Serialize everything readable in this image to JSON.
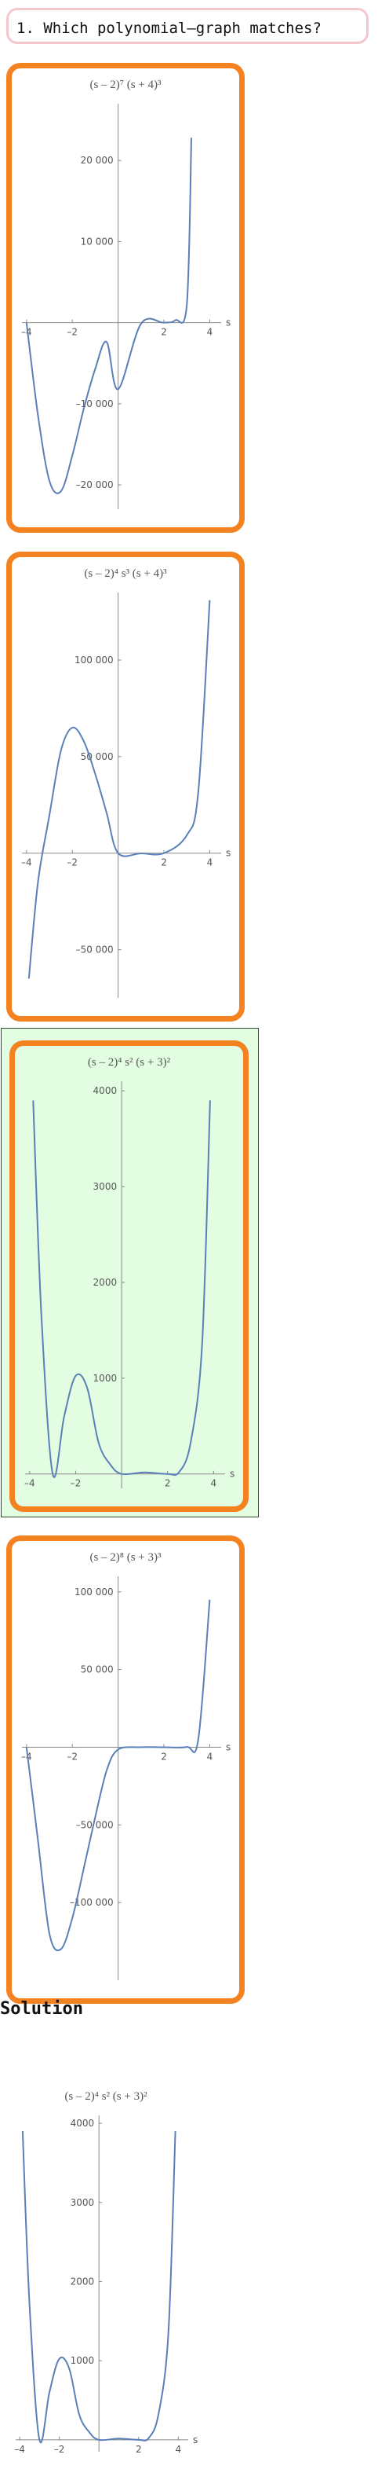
{
  "question": {
    "label": "1. Which polynomial–graph matches?"
  },
  "solution": {
    "heading": "Solution"
  },
  "colors": {
    "option_border": "#f58220",
    "selected_bg": "#e3fde3",
    "curve": "#5b7fb8",
    "question_border": "#f5c6cc"
  },
  "chart_data": [
    {
      "type": "line",
      "title": "(s – 2)⁷ (s + 4)³",
      "xlabel": "s",
      "ylabel": "",
      "xlim": [
        -4.2,
        4.5
      ],
      "ylim": [
        -23000,
        27000
      ],
      "x_ticks": [
        -4,
        -2,
        2,
        4
      ],
      "x_tick_labels": [
        "–4",
        "–2",
        "2",
        "4"
      ],
      "y_ticks": [
        -20000,
        -10000,
        10000,
        20000
      ],
      "y_tick_labels": [
        "–20 000",
        "–10 000",
        "10 000",
        "20 000"
      ],
      "x": [
        -4,
        -3.5,
        -3,
        -2.5,
        -2,
        -1.5,
        -1,
        -0.5,
        0,
        1,
        2,
        2.5,
        3,
        3.2
      ],
      "y": [
        0,
        -11400,
        -19500,
        -20800,
        -16384,
        -10600,
        -5700,
        -2380,
        -8200,
        -130,
        0,
        300,
        2200,
        22800
      ]
    },
    {
      "type": "line",
      "title": "(s – 2)⁴ s³ (s + 4)³",
      "xlabel": "s",
      "ylabel": "",
      "xlim": [
        -4.2,
        4.5
      ],
      "ylim": [
        -75000,
        135000
      ],
      "x_ticks": [
        -4,
        -2,
        2,
        4
      ],
      "x_tick_labels": [
        "–4",
        "–2",
        "2",
        "4"
      ],
      "y_ticks": [
        -50000,
        50000,
        100000
      ],
      "y_tick_labels": [
        "–50 000",
        "50 000",
        "100 000"
      ],
      "x": [
        -3.9,
        -3.5,
        -3,
        -2.5,
        -2,
        -1.5,
        -1,
        -0.5,
        0,
        1,
        2,
        3,
        3.5,
        4
      ],
      "y": [
        -65000,
        -15000,
        19700,
        53000,
        65000,
        58000,
        41000,
        20800,
        0,
        -125,
        0,
        9300,
        31600,
        131000
      ]
    },
    {
      "type": "line",
      "title": "(s – 2)⁴ s² (s + 3)²",
      "xlabel": "s",
      "ylabel": "",
      "xlim": [
        -4.2,
        4.5
      ],
      "ylim": [
        -150,
        4100
      ],
      "x_ticks": [
        -4,
        -2,
        2,
        4
      ],
      "x_tick_labels": [
        "–4",
        "–2",
        "2",
        "4"
      ],
      "y_ticks": [
        1000,
        2000,
        3000,
        4000
      ],
      "y_tick_labels": [
        "1000",
        "2000",
        "3000",
        "4000"
      ],
      "x": [
        -3.85,
        -3.5,
        -3,
        -2.5,
        -2,
        -1.5,
        -1,
        -0.5,
        0,
        1,
        2,
        2.5,
        3,
        3.5,
        3.85
      ],
      "y": [
        3900,
        1700,
        0,
        600,
        1024,
        900,
        324,
        100,
        0,
        16,
        0,
        20,
        324,
        1350,
        3900
      ]
    },
    {
      "type": "line",
      "title": "(s – 2)⁸ (s + 3)³",
      "xlabel": "s",
      "ylabel": "",
      "xlim": [
        -4.2,
        4.5
      ],
      "ylim": [
        -150000,
        110000
      ],
      "x_ticks": [
        -4,
        -2,
        2,
        4
      ],
      "x_tick_labels": [
        "–4",
        "–2",
        "2",
        "4"
      ],
      "y_ticks": [
        -100000,
        -50000,
        50000,
        100000
      ],
      "y_tick_labels": [
        "–100 000",
        "–50 000",
        "50 000",
        "100 000"
      ],
      "x": [
        -4,
        -3.5,
        -3,
        -2.5,
        -2,
        -1.5,
        -1,
        -0.5,
        0,
        1,
        2,
        3,
        3.5,
        4
      ],
      "y": [
        0,
        -60000,
        -120000,
        -130000,
        -110000,
        -78000,
        -45000,
        -15000,
        -1500,
        0,
        0,
        200,
        5000,
        95000
      ]
    },
    {
      "type": "line",
      "title": "(s – 2)⁴ s² (s + 3)²",
      "xlabel": "s",
      "ylabel": "",
      "xlim": [
        -4.2,
        4.5
      ],
      "ylim": [
        -150,
        4100
      ],
      "x_ticks": [
        -4,
        -2,
        2,
        4
      ],
      "x_tick_labels": [
        "–4",
        "–2",
        "2",
        "4"
      ],
      "y_ticks": [
        1000,
        2000,
        3000,
        4000
      ],
      "y_tick_labels": [
        "1000",
        "2000",
        "3000",
        "4000"
      ],
      "x": [
        -3.85,
        -3.5,
        -3,
        -2.5,
        -2,
        -1.5,
        -1,
        -0.5,
        0,
        1,
        2,
        2.5,
        3,
        3.5,
        3.85
      ],
      "y": [
        3900,
        1700,
        0,
        600,
        1024,
        900,
        324,
        100,
        0,
        16,
        0,
        20,
        324,
        1350,
        3900
      ]
    }
  ]
}
